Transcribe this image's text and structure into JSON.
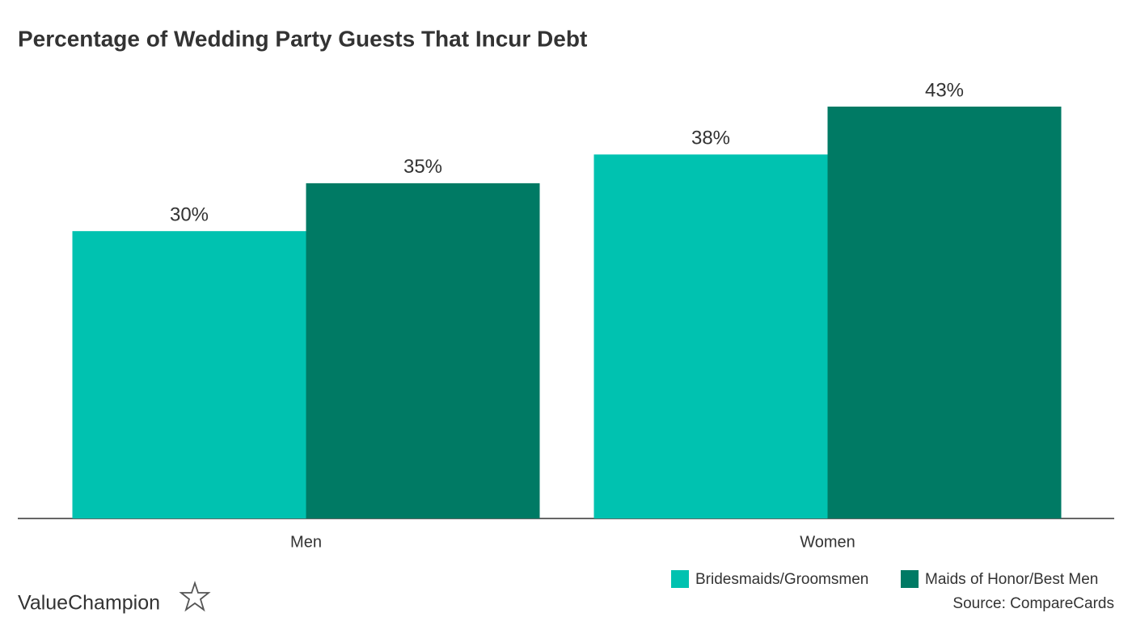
{
  "chart_data": {
    "type": "bar",
    "title": "Percentage of Wedding Party Guests That Incur Debt",
    "categories": [
      "Men",
      "Women"
    ],
    "series": [
      {
        "name": "Bridesmaids/Groomsmen",
        "color": "#00c2b0",
        "values": [
          30,
          38
        ],
        "value_labels": [
          "30%",
          "38%"
        ]
      },
      {
        "name": "Maids of Honor/Best Men",
        "color": "#007a64",
        "values": [
          35,
          43
        ],
        "value_labels": [
          "35%",
          "43%"
        ]
      }
    ],
    "legend": "bottom-right",
    "source": "Source: CompareCards",
    "brand": "ValueChampion"
  }
}
